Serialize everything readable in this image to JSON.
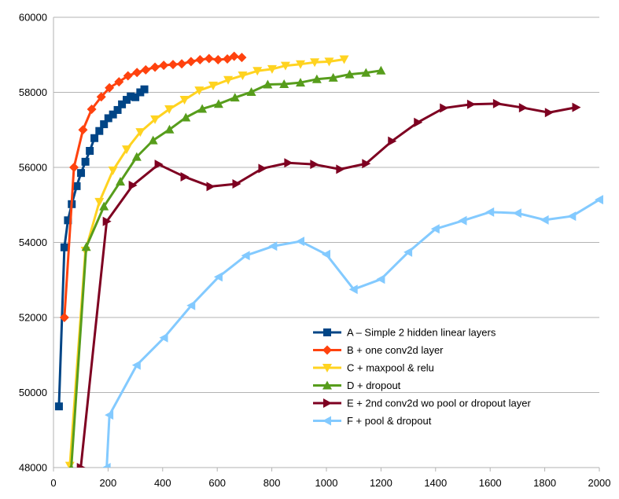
{
  "chart_data": {
    "type": "line",
    "title": "",
    "xlabel": "",
    "ylabel": "",
    "xlim": [
      0,
      2000
    ],
    "ylim": [
      48000,
      60000
    ],
    "x_ticks": [
      0,
      200,
      400,
      600,
      800,
      1000,
      1200,
      1400,
      1600,
      1800,
      2000
    ],
    "y_ticks": [
      48000,
      50000,
      52000,
      54000,
      56000,
      58000,
      60000
    ],
    "grid": "horizontal",
    "legend_position": "bottom-right",
    "series": [
      {
        "name": "A – Simple 2 hidden linear layers",
        "color": "#004586",
        "marker": "square",
        "x": [
          20,
          40,
          53,
          67,
          85,
          101,
          117,
          133,
          150,
          168,
          185,
          201,
          218,
          235,
          251,
          268,
          283,
          300,
          318,
          333
        ],
        "y": [
          49630,
          53870,
          54590,
          55020,
          55500,
          55850,
          56150,
          56440,
          56780,
          56970,
          57150,
          57310,
          57410,
          57530,
          57680,
          57800,
          57890,
          57870,
          58000,
          58080
        ]
      },
      {
        "name": "B + one conv2d layer",
        "color": "#ff420e",
        "marker": "diamond",
        "x": [
          40,
          75,
          108,
          140,
          175,
          205,
          240,
          273,
          306,
          338,
          372,
          404,
          438,
          470,
          504,
          537,
          570,
          603,
          637,
          662,
          690
        ],
        "y": [
          52000,
          56000,
          57000,
          57550,
          57880,
          58120,
          58280,
          58440,
          58530,
          58600,
          58670,
          58720,
          58740,
          58760,
          58820,
          58870,
          58900,
          58870,
          58890,
          58960,
          58930
        ]
      },
      {
        "name": "C + maxpool & relu",
        "color": "#ffd320",
        "marker": "triangle-down",
        "x": [
          60,
          117,
          168,
          218,
          268,
          318,
          372,
          424,
          480,
          534,
          585,
          640,
          693,
          747,
          801,
          850,
          905,
          957,
          1010,
          1065
        ],
        "y": [
          48050,
          53780,
          55080,
          55920,
          56480,
          56940,
          57280,
          57550,
          57800,
          58050,
          58180,
          58330,
          58450,
          58570,
          58620,
          58710,
          58750,
          58800,
          58820,
          58880
        ]
      },
      {
        "name": "D + dropout",
        "color": "#579d1c",
        "marker": "triangle-up",
        "x": [
          65,
          120,
          185,
          245,
          305,
          365,
          425,
          485,
          545,
          605,
          665,
          725,
          785,
          845,
          905,
          965,
          1025,
          1085,
          1145,
          1200
        ],
        "y": [
          47980,
          53880,
          54960,
          55620,
          56280,
          56720,
          57010,
          57330,
          57560,
          57690,
          57860,
          58010,
          58210,
          58220,
          58260,
          58350,
          58390,
          58480,
          58520,
          58580
        ]
      },
      {
        "name": "E + 2nd conv2d wo pool or dropout layer",
        "color": "#7e0021",
        "marker": "triangle-right",
        "x": [
          100,
          195,
          290,
          385,
          480,
          575,
          670,
          765,
          860,
          955,
          1050,
          1145,
          1240,
          1335,
          1430,
          1530,
          1625,
          1720,
          1815,
          1915
        ],
        "y": [
          48000,
          54560,
          55520,
          56080,
          55750,
          55490,
          55560,
          55970,
          56120,
          56080,
          55950,
          56100,
          56700,
          57200,
          57580,
          57680,
          57700,
          57590,
          57460,
          57600
        ]
      },
      {
        "name": "F + pool & dropout",
        "color": "#83caff",
        "marker": "triangle-left",
        "x": [
          195,
          205,
          305,
          405,
          505,
          605,
          705,
          805,
          905,
          1000,
          1100,
          1200,
          1300,
          1400,
          1500,
          1600,
          1700,
          1800,
          1900,
          2000
        ],
        "y": [
          48000,
          49400,
          50730,
          51460,
          52320,
          53080,
          53650,
          53900,
          54030,
          53680,
          52750,
          53020,
          53740,
          54360,
          54580,
          54810,
          54780,
          54600,
          54700,
          55140
        ]
      }
    ]
  }
}
